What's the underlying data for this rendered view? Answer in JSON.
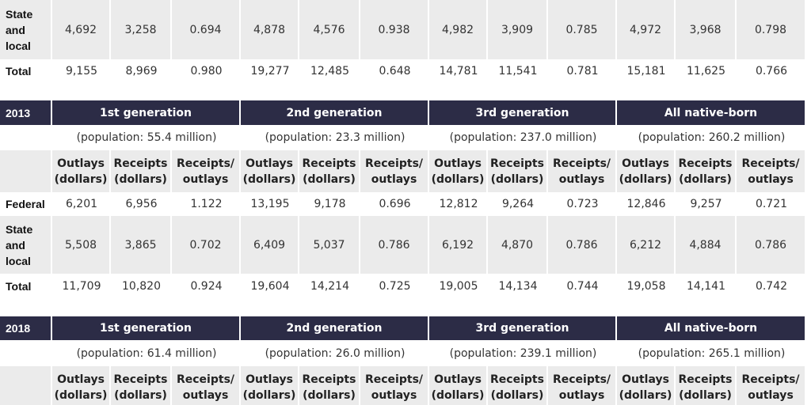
{
  "sections": [
    {
      "rows": [
        {
          "label": "State and local",
          "values": [
            "4,692",
            "3,258",
            "0.694",
            "4,878",
            "4,576",
            "0.938",
            "4,982",
            "3,909",
            "0.785",
            "4,972",
            "3,968",
            "0.798"
          ]
        },
        {
          "label": "Total",
          "values": [
            "9,155",
            "8,969",
            "0.980",
            "19,277",
            "12,485",
            "0.648",
            "14,781",
            "11,541",
            "0.781",
            "15,181",
            "11,625",
            "0.766"
          ]
        }
      ]
    },
    {
      "year": "2013",
      "groups": [
        "1st generation",
        "2nd generation",
        "3rd generation",
        "All native-born"
      ],
      "populations": [
        "(population: 55.4 million)",
        "(population: 23.3 million)",
        "(population: 237.0 million)",
        "(population: 260.2 million)"
      ],
      "column_headers": [
        "Outlays\n(dollars)",
        "Receipts\n(dollars)",
        "Receipts/\noutlays",
        "Outlays\n(dollars)",
        "Receipts\n(dollars)",
        "Receipts/\noutlays",
        "Outlays\n(dollars)",
        "Receipts\n(dollars)",
        "Receipts/\noutlays",
        "Outlays\n(dollars)",
        "Receipts\n(dollars)",
        "Receipts/\noutlays"
      ],
      "rows": [
        {
          "label": "Federal",
          "values": [
            "6,201",
            "6,956",
            "1.122",
            "13,195",
            "9,178",
            "0.696",
            "12,812",
            "9,264",
            "0.723",
            "12,846",
            "9,257",
            "0.721"
          ]
        },
        {
          "label": "State and local",
          "values": [
            "5,508",
            "3,865",
            "0.702",
            "6,409",
            "5,037",
            "0.786",
            "6,192",
            "4,870",
            "0.786",
            "6,212",
            "4,884",
            "0.786"
          ]
        },
        {
          "label": "Total",
          "values": [
            "11,709",
            "10,820",
            "0.924",
            "19,604",
            "14,214",
            "0.725",
            "19,005",
            "14,134",
            "0.744",
            "19,058",
            "14,141",
            "0.742"
          ]
        }
      ]
    },
    {
      "year": "2018",
      "groups": [
        "1st generation",
        "2nd generation",
        "3rd generation",
        "All native-born"
      ],
      "populations": [
        "(population: 61.4 million)",
        "(population: 26.0 million)",
        "(population: 239.1 million)",
        "(population: 265.1 million)"
      ],
      "column_headers": [
        "Outlays\n(dollars)",
        "Receipts\n(dollars)",
        "Receipts/\noutlays",
        "Outlays\n(dollars)",
        "Receipts\n(dollars)",
        "Receipts/\noutlays",
        "Outlays\n(dollars)",
        "Receipts\n(dollars)",
        "Receipts/\noutlays",
        "Outlays\n(dollars)",
        "Receipts\n(dollars)",
        "Receipts/\noutlays"
      ]
    }
  ]
}
